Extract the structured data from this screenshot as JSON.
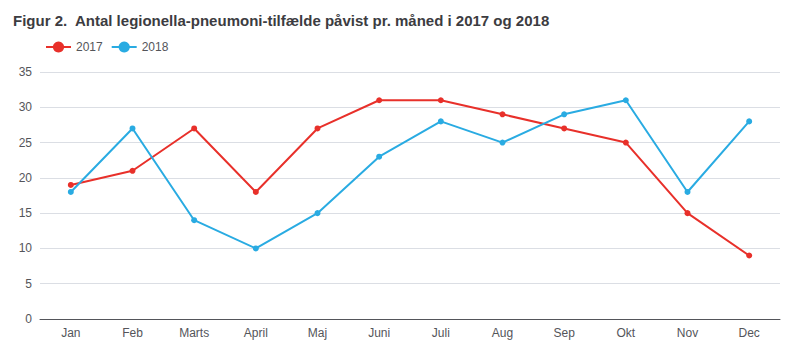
{
  "chart_data": {
    "type": "line",
    "title": "Figur 2.  Antal legionella-pneumoni-tilfælde påvist pr. måned i 2017 og 2018",
    "categories": [
      "Jan",
      "Feb",
      "Marts",
      "April",
      "Maj",
      "Juni",
      "Juli",
      "Aug",
      "Sep",
      "Okt",
      "Nov",
      "Dec"
    ],
    "series": [
      {
        "name": "2017",
        "color": "#e8302a",
        "marker": "circle",
        "values": [
          19,
          21,
          27,
          18,
          27,
          31,
          31,
          29,
          27,
          25,
          15,
          9
        ]
      },
      {
        "name": "2018",
        "color": "#29abe2",
        "marker": "circle",
        "values": [
          18,
          27,
          14,
          10,
          15,
          23,
          28,
          25,
          29,
          31,
          18,
          28
        ]
      }
    ],
    "ylim": [
      0,
      35
    ],
    "yticks": [
      0,
      5,
      10,
      15,
      20,
      25,
      30,
      35
    ],
    "grid": true,
    "legend": "upper left"
  }
}
